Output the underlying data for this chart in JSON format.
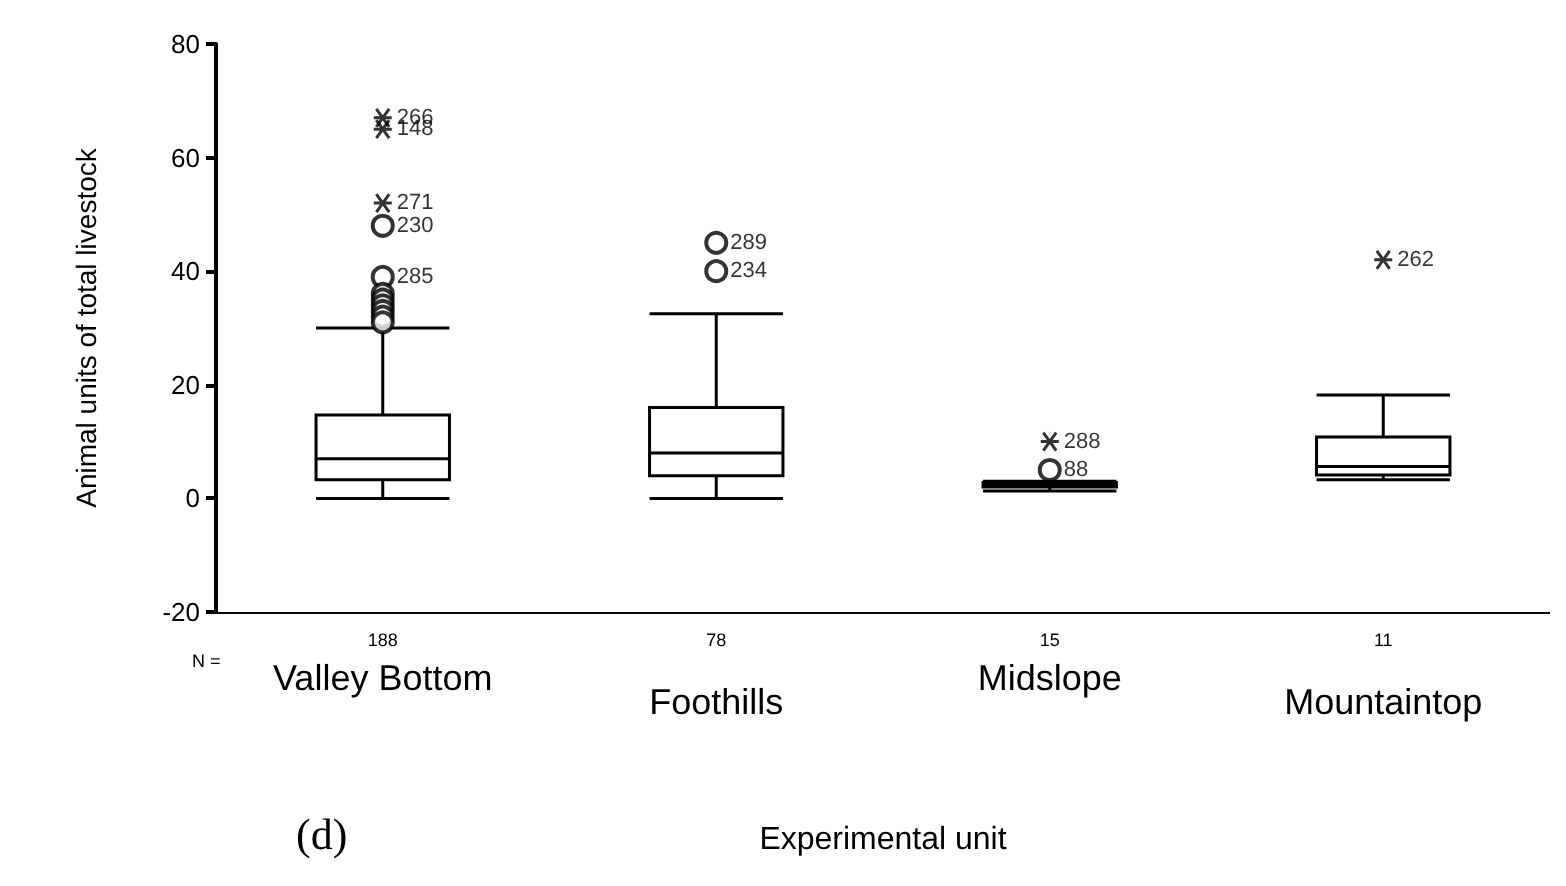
{
  "chart_data": {
    "type": "box",
    "xlabel": "Experimental unit",
    "ylabel": "Animal units of total livestock",
    "categories": [
      "Valley Bottom",
      "Foothills",
      "Midslope",
      "Mountaintop"
    ],
    "boxes": [
      {
        "low": 0,
        "q1": 3.3,
        "median": 7,
        "q3": 14.7,
        "high": 30
      },
      {
        "low": 0,
        "q1": 4,
        "median": 8,
        "q3": 16,
        "high": 32.5
      },
      {
        "low": 1.3,
        "q1": 2,
        "median": 2.4,
        "q3": 2.8,
        "high": 3
      },
      {
        "low": 3.3,
        "q1": 4.1,
        "median": 5.6,
        "q3": 10.8,
        "high": 18.2
      }
    ],
    "series": [
      {
        "type": "scatter",
        "marker": "circle",
        "color": "#000000",
        "x": [
          "Valley Bottom",
          "Valley Bottom",
          "Valley Bottom",
          "Valley Bottom",
          "Valley Bottom",
          "Valley Bottom",
          "Valley Bottom",
          "Valley Bottom",
          "Foothills",
          "Foothills",
          "Midslope"
        ],
        "values": [
          48,
          39,
          36,
          35,
          34,
          33,
          32,
          31,
          45,
          40,
          5
        ]
      },
      {
        "type": "scatter",
        "marker": "cross",
        "color": "#000000",
        "x": [
          "Valley Bottom",
          "Valley Bottom",
          "Valley Bottom",
          "Midslope",
          "Mountaintop"
        ],
        "values": [
          67,
          65,
          52,
          10,
          42
        ]
      }
    ],
    "color": "#000000",
    "ylim": [
      -20,
      80
    ],
    "yticks": [
      -20,
      0,
      20,
      40,
      60,
      80
    ],
    "grid": false,
    "annotations": [
      "(d)",
      "N =",
      "188",
      "78",
      "15",
      "11",
      {
        "text": "266",
        "x": "Valley Bottom",
        "y": 67
      },
      {
        "text": "148",
        "x": "Valley Bottom",
        "y": 65
      },
      {
        "text": "271",
        "x": "Valley Bottom",
        "y": 52
      },
      {
        "text": "230",
        "x": "Valley Bottom",
        "y": 48
      },
      {
        "text": "285",
        "x": "Valley Bottom",
        "y": 39
      },
      {
        "text": "289",
        "x": "Foothills",
        "y": 45
      },
      {
        "text": "234",
        "x": "Foothills",
        "y": 40
      },
      {
        "text": "288",
        "x": "Midslope",
        "y": 10
      },
      {
        "text": "88",
        "x": "Midslope",
        "y": 5
      },
      {
        "text": "262",
        "x": "Mountaintop",
        "y": 42
      }
    ]
  }
}
